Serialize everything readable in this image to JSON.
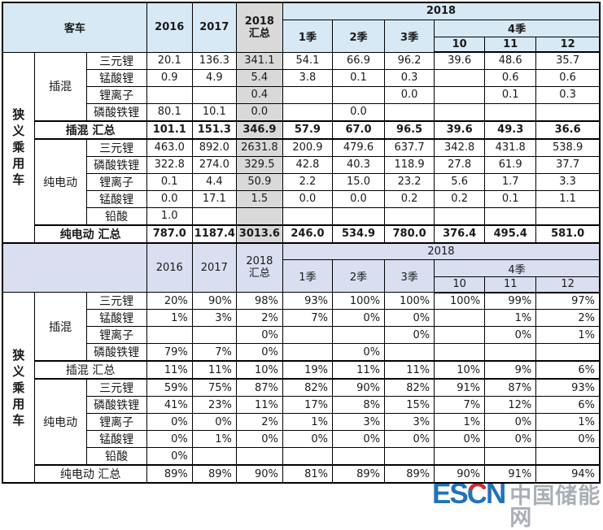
{
  "watermark": {
    "logo_es": "ES",
    "logo_c": "C",
    "logo_n": "N",
    "site": "中国储能网"
  },
  "colors": {
    "section1_header_bg": "#d7e9f4",
    "section2_header_bg": "#d9dff0",
    "total_column_gray": "#d9d9d9",
    "border": "#000000",
    "logo_blue": "#2273b9",
    "logo_red": "#d02c2f",
    "site_gray": "#a6abb3"
  },
  "chart_data": {
    "type": "table",
    "title": "",
    "side_label": "狭义乘用车",
    "columns": [
      "2016",
      "2017",
      "2018 汇总",
      "2018 1季",
      "2018 2季",
      "2018 3季",
      "2018-10",
      "2018-11",
      "2018-12"
    ],
    "header": {
      "corner_section1": "客车",
      "corner_section2": "",
      "col_2016": "2016",
      "col_2017": "2017",
      "total_line1": "2018",
      "total_line2": "汇总",
      "year_group": "2018",
      "q1": "1季",
      "q2": "2季",
      "q3": "3季",
      "q4": "4季",
      "m10": "10",
      "m11": "11",
      "m12": "12"
    },
    "labels": {
      "plugin": "插混",
      "ev": "纯电动",
      "plugin_total": "插混 汇总",
      "ev_total": "纯电动 汇总",
      "ternary": "三元锂",
      "lmo": "锰酸锂",
      "liion": "锂离子",
      "lfp": "磷酸铁锂",
      "lead": "铅酸"
    },
    "sections": [
      {
        "format": "absolute",
        "rows": {
          "plugin_ternary": [
            "20.1",
            "136.3",
            "341.1",
            "54.1",
            "66.9",
            "96.2",
            "39.6",
            "48.6",
            "35.7"
          ],
          "plugin_lmo": [
            "0.9",
            "4.9",
            "5.4",
            "3.8",
            "0.1",
            "0.3",
            "",
            "0.6",
            "0.6"
          ],
          "plugin_liion": [
            "",
            "",
            "0.4",
            "",
            "",
            "0.0",
            "",
            "0.1",
            "0.3"
          ],
          "plugin_lfp": [
            "80.1",
            "10.1",
            "0.0",
            "",
            "0.0",
            "",
            "",
            "",
            ""
          ],
          "plugin_total": [
            "101.1",
            "151.3",
            "346.9",
            "57.9",
            "67.0",
            "96.5",
            "39.6",
            "49.3",
            "36.6"
          ],
          "ev_ternary": [
            "463.0",
            "892.0",
            "2631.8",
            "200.9",
            "479.6",
            "637.7",
            "342.8",
            "431.8",
            "538.9"
          ],
          "ev_lfp": [
            "322.8",
            "274.0",
            "329.5",
            "42.8",
            "40.3",
            "118.9",
            "27.8",
            "61.9",
            "37.7"
          ],
          "ev_liion": [
            "0.1",
            "4.4",
            "50.9",
            "2.2",
            "15.0",
            "23.2",
            "5.6",
            "1.7",
            "3.3"
          ],
          "ev_lmo": [
            "0.0",
            "17.1",
            "1.5",
            "0.0",
            "0.0",
            "0.2",
            "0.2",
            "0.1",
            "1.1"
          ],
          "ev_lead": [
            "1.0",
            "",
            "",
            "",
            "",
            "",
            "",
            "",
            ""
          ],
          "ev_total": [
            "787.0",
            "1187.4",
            "3013.6",
            "246.0",
            "534.9",
            "780.0",
            "376.4",
            "495.4",
            "581.0"
          ]
        }
      },
      {
        "format": "percent",
        "rows": {
          "plugin_ternary": [
            "20%",
            "90%",
            "98%",
            "93%",
            "100%",
            "100%",
            "100%",
            "99%",
            "97%"
          ],
          "plugin_lmo": [
            "1%",
            "3%",
            "2%",
            "7%",
            "0%",
            "0%",
            "",
            "1%",
            "2%"
          ],
          "plugin_liion": [
            "",
            "",
            "0%",
            "",
            "",
            "0%",
            "",
            "0%",
            "1%"
          ],
          "plugin_lfp": [
            "79%",
            "7%",
            "0%",
            "",
            "0%",
            "",
            "",
            "",
            ""
          ],
          "plugin_total": [
            "11%",
            "11%",
            "10%",
            "19%",
            "11%",
            "11%",
            "10%",
            "9%",
            "6%"
          ],
          "ev_ternary": [
            "59%",
            "75%",
            "87%",
            "82%",
            "90%",
            "82%",
            "91%",
            "87%",
            "93%"
          ],
          "ev_lfp": [
            "41%",
            "23%",
            "11%",
            "17%",
            "8%",
            "15%",
            "7%",
            "12%",
            "6%"
          ],
          "ev_liion": [
            "0%",
            "0%",
            "2%",
            "1%",
            "3%",
            "3%",
            "1%",
            "0%",
            "1%"
          ],
          "ev_lmo": [
            "0%",
            "1%",
            "0%",
            "0%",
            "0%",
            "0%",
            "0%",
            "0%",
            "0%"
          ],
          "ev_lead": [
            "0%",
            "",
            "",
            "",
            "",
            "",
            "",
            "",
            ""
          ],
          "ev_total": [
            "89%",
            "89%",
            "90%",
            "81%",
            "89%",
            "89%",
            "90%",
            "91%",
            "94%"
          ]
        }
      }
    ]
  }
}
